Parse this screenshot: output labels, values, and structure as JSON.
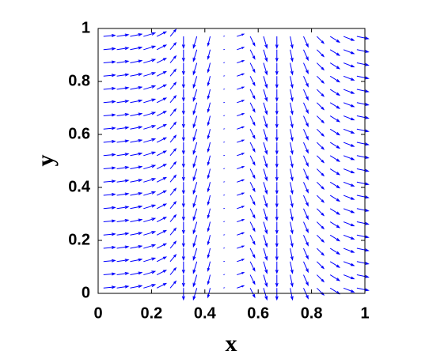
{
  "chart_data": {
    "type": "quiver",
    "xlabel": "x",
    "ylabel": "y",
    "x": [
      0.02,
      0.07,
      0.12,
      0.17,
      0.22,
      0.27,
      0.32,
      0.37,
      0.42,
      0.47,
      0.52,
      0.57,
      0.62,
      0.67,
      0.72,
      0.77,
      0.82,
      0.87,
      0.92,
      0.97
    ],
    "y": [
      0.02,
      0.07,
      0.12,
      0.17,
      0.22,
      0.27,
      0.32,
      0.37,
      0.42,
      0.47,
      0.52,
      0.57,
      0.62,
      0.67,
      0.72,
      0.77,
      0.82,
      0.87,
      0.92,
      0.97
    ],
    "u": [
      1,
      1,
      1,
      1,
      0.8,
      0.5,
      0,
      -0.3,
      -0.2,
      0.05,
      0.6,
      0.4,
      0.3,
      0,
      0.2,
      0.4,
      0.6,
      0.8,
      0.9,
      1
    ],
    "v": [
      0.1,
      0.15,
      0.2,
      0.3,
      0.4,
      0.6,
      -1,
      -1,
      -0.8,
      0.02,
      0.2,
      -0.8,
      -1,
      -1,
      -1,
      -0.9,
      -0.6,
      -0.5,
      -0.35,
      -0.2
    ],
    "color": "#0000ff",
    "xlim": [
      0,
      1
    ],
    "ylim": [
      0,
      1
    ],
    "xticks": [
      0,
      0.2,
      0.4,
      0.6,
      0.8,
      1
    ],
    "yticks": [
      0,
      0.2,
      0.4,
      0.6,
      0.8,
      1
    ]
  }
}
